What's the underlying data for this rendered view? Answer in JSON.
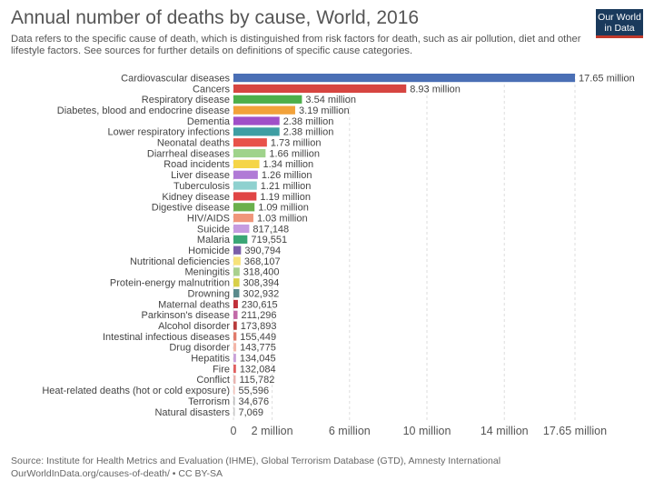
{
  "header": {
    "title": "Annual number of deaths by cause, World, 2016",
    "subtitle": "Data refers to the specific cause of death, which is distinguished from risk factors for death, such as air pollution, diet and other lifestyle factors. See sources for further details on definitions of specific cause categories."
  },
  "logo": {
    "line1": "Our World",
    "line2": "in Data"
  },
  "footer": {
    "source": "Source: Institute for Health Metrics and Evaluation (IHME), Global Terrorism Database (GTD), Amnesty International",
    "url": "OurWorldInData.org/causes-of-death/ • CC BY-SA"
  },
  "chart_data": {
    "type": "bar",
    "orientation": "horizontal",
    "title": "Annual number of deaths by cause, World, 2016",
    "xlim": [
      0,
      17650000
    ],
    "xticks": [
      {
        "value": 0,
        "label": "0"
      },
      {
        "value": 2000000,
        "label": "2 million"
      },
      {
        "value": 6000000,
        "label": "6 million"
      },
      {
        "value": 10000000,
        "label": "10 million"
      },
      {
        "value": 14000000,
        "label": "14 million"
      },
      {
        "value": 17650000,
        "label": "17.65 million"
      }
    ],
    "bars": [
      {
        "category": "Cardiovascular diseases",
        "value": 17650000,
        "label": "17.65 million",
        "color": "#4a6fb5"
      },
      {
        "category": "Cancers",
        "value": 8930000,
        "label": "8.93 million",
        "color": "#d64541"
      },
      {
        "category": "Respiratory disease",
        "value": 3540000,
        "label": "3.54 million",
        "color": "#4daf4a"
      },
      {
        "category": "Diabetes, blood and endocrine disease",
        "value": 3190000,
        "label": "3.19 million",
        "color": "#f2a23a"
      },
      {
        "category": "Dementia",
        "value": 2380000,
        "label": "2.38 million",
        "color": "#a04fc8"
      },
      {
        "category": "Lower respiratory infections",
        "value": 2380000,
        "label": "2.38 million",
        "color": "#3e9ea3"
      },
      {
        "category": "Neonatal deaths",
        "value": 1730000,
        "label": "1.73 million",
        "color": "#e8524a"
      },
      {
        "category": "Diarrheal diseases",
        "value": 1660000,
        "label": "1.66 million",
        "color": "#9fd38b"
      },
      {
        "category": "Road incidents",
        "value": 1340000,
        "label": "1.34 million",
        "color": "#f5d547"
      },
      {
        "category": "Liver disease",
        "value": 1260000,
        "label": "1.26 million",
        "color": "#b07ad6"
      },
      {
        "category": "Tuberculosis",
        "value": 1210000,
        "label": "1.21 million",
        "color": "#8fd1cf"
      },
      {
        "category": "Kidney disease",
        "value": 1190000,
        "label": "1.19 million",
        "color": "#e04545"
      },
      {
        "category": "Digestive disease",
        "value": 1090000,
        "label": "1.09 million",
        "color": "#6ab04c"
      },
      {
        "category": "HIV/AIDS",
        "value": 1030000,
        "label": "1.03 million",
        "color": "#f0967a"
      },
      {
        "category": "Suicide",
        "value": 817148,
        "label": "817,148",
        "color": "#c59be0"
      },
      {
        "category": "Malaria",
        "value": 719551,
        "label": "719,551",
        "color": "#3aa675"
      },
      {
        "category": "Homicide",
        "value": 390794,
        "label": "390,794",
        "color": "#7a5ea8"
      },
      {
        "category": "Nutritional deficiencies",
        "value": 368107,
        "label": "368,107",
        "color": "#f7e27a"
      },
      {
        "category": "Meningitis",
        "value": 318400,
        "label": "318,400",
        "color": "#a9d08e"
      },
      {
        "category": "Protein-energy malnutrition",
        "value": 308394,
        "label": "308,394",
        "color": "#d8d04a"
      },
      {
        "category": "Drowning",
        "value": 302932,
        "label": "302,932",
        "color": "#5a8a8c"
      },
      {
        "category": "Maternal deaths",
        "value": 230615,
        "label": "230,615",
        "color": "#c0303a"
      },
      {
        "category": "Parkinson's disease",
        "value": 211296,
        "label": "211,296",
        "color": "#c26aa8"
      },
      {
        "category": "Alcohol disorder",
        "value": 173893,
        "label": "173,893",
        "color": "#b83b3b"
      },
      {
        "category": "Intestinal infectious diseases",
        "value": 155449,
        "label": "155,449",
        "color": "#e07a6a"
      },
      {
        "category": "Drug disorder",
        "value": 143775,
        "label": "143,775",
        "color": "#f3b6a8"
      },
      {
        "category": "Hepatitis",
        "value": 134045,
        "label": "134,045",
        "color": "#c9a1d8"
      },
      {
        "category": "Fire",
        "value": 132084,
        "label": "132,084",
        "color": "#e06060"
      },
      {
        "category": "Conflict",
        "value": 115782,
        "label": "115,782",
        "color": "#e8b4b0"
      },
      {
        "category": "Heat-related deaths (hot or cold exposure)",
        "value": 55596,
        "label": "55,596",
        "color": "#f0c0b8"
      },
      {
        "category": "Terrorism",
        "value": 34676,
        "label": "34,676",
        "color": "#b8b8b8"
      },
      {
        "category": "Natural disasters",
        "value": 7069,
        "label": "7,069",
        "color": "#c8c8c8"
      }
    ]
  }
}
